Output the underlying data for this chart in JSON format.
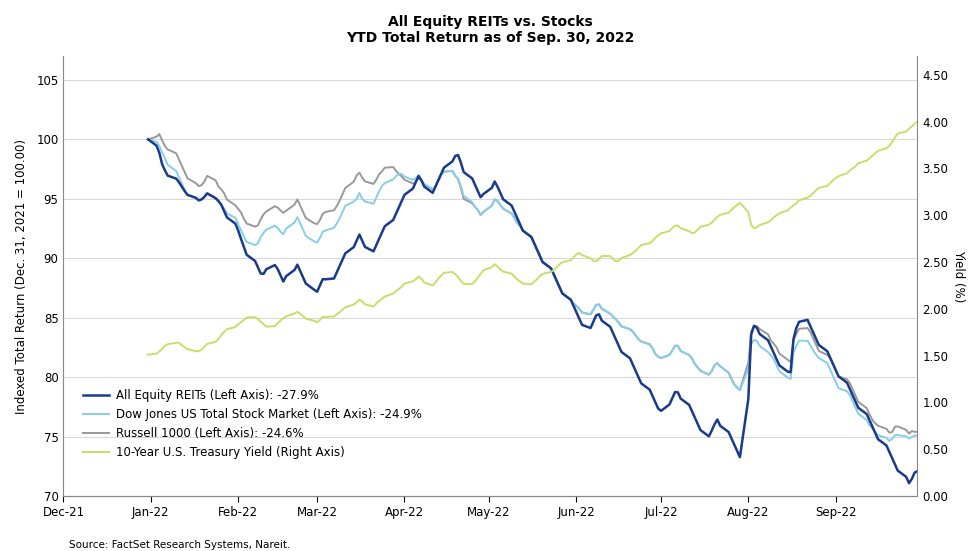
{
  "title_line1": "All Equity REITs vs. Stocks",
  "title_line2": "YTD Total Return as of Sep. 30, 2022",
  "ylabel_left": "Indexed Total Return (Dec. 31, 2021 = 100.00)",
  "ylabel_right": "Yield (%)",
  "source": "Source: FactSet Research Systems, Nareit.",
  "ylim_left": [
    70,
    107
  ],
  "ylim_right": [
    0.0,
    4.7
  ],
  "yticks_left": [
    70,
    75,
    80,
    85,
    90,
    95,
    100,
    105
  ],
  "yticks_right": [
    0.0,
    0.5,
    1.0,
    1.5,
    2.0,
    2.5,
    3.0,
    3.5,
    4.0,
    4.5
  ],
  "colors": {
    "reit": "#1a3a8c",
    "dow": "#87ceeb",
    "russell": "#999999",
    "treasury": "#c5e06a"
  },
  "legend": [
    "All Equity REITs (Left Axis): -27.9%",
    "Dow Jones US Total Stock Market (Left Axis): -24.9%",
    "Russell 1000 (Left Axis): -24.6%",
    "10-Year U.S. Treasury Yield (Right Axis)"
  ],
  "reit_data": [
    100.0,
    99.5,
    99.0,
    98.0,
    97.5,
    97.0,
    96.8,
    96.5,
    96.2,
    95.8,
    95.5,
    95.2,
    95.0,
    94.8,
    95.0,
    95.2,
    95.5,
    95.0,
    94.8,
    94.5,
    94.0,
    93.5,
    93.0,
    92.5,
    91.8,
    91.2,
    90.5,
    90.0,
    89.5,
    89.0,
    88.5,
    88.8,
    89.2,
    89.5,
    89.0,
    88.5,
    88.0,
    88.5,
    89.0,
    89.5,
    89.0,
    88.5,
    88.0,
    87.5,
    87.0,
    87.5,
    88.0,
    88.5,
    88.0,
    88.5,
    89.0,
    89.5,
    90.0,
    90.5,
    91.0,
    91.5,
    92.0,
    91.5,
    91.0,
    90.5,
    91.0,
    91.5,
    92.0,
    92.5,
    93.0,
    93.5,
    94.0,
    94.5,
    95.0,
    95.5,
    96.0,
    96.5,
    97.0,
    96.5,
    96.0,
    95.5,
    96.0,
    96.5,
    97.0,
    97.5,
    98.0,
    98.5,
    98.8,
    98.5,
    97.5,
    97.0,
    96.5,
    96.0,
    95.5,
    95.0,
    95.5,
    96.0,
    96.5,
    96.0,
    95.5,
    95.0,
    94.5,
    94.0,
    93.5,
    93.0,
    92.5,
    92.0,
    91.5,
    91.0,
    90.5,
    90.0,
    89.5,
    89.0,
    88.5,
    88.0,
    87.5,
    87.0,
    86.5,
    86.0,
    85.5,
    85.0,
    84.5,
    84.0,
    84.5,
    85.0,
    85.5,
    85.0,
    84.5,
    84.0,
    83.5,
    83.0,
    82.5,
    82.0,
    81.5,
    81.0,
    80.5,
    80.0,
    79.5,
    79.0,
    78.5,
    78.0,
    77.5,
    77.0,
    77.5,
    78.0,
    78.5,
    79.0,
    78.5,
    78.0,
    77.5,
    77.0,
    76.5,
    76.0,
    75.5,
    75.0,
    75.5,
    76.0,
    76.5,
    76.0,
    75.5,
    75.0,
    74.5,
    74.0,
    73.5,
    73.0,
    83.0,
    84.0,
    84.5,
    84.0,
    83.5,
    83.0,
    82.5,
    82.0,
    81.5,
    81.0,
    80.5,
    80.0,
    83.0,
    84.0,
    84.5,
    85.0,
    84.5,
    84.0,
    83.5,
    83.0,
    82.5,
    82.0,
    81.5,
    81.0,
    80.5,
    80.0,
    79.5,
    79.0,
    78.5,
    78.0,
    77.5,
    77.0,
    76.5,
    76.0,
    75.5,
    75.0,
    74.5,
    74.0,
    73.5,
    73.0,
    72.5,
    72.0,
    71.5,
    71.0,
    71.5,
    72.0,
    72.1
  ],
  "dow_data": [
    100.0,
    99.8,
    99.5,
    99.0,
    98.5,
    98.0,
    97.5,
    97.0,
    96.5,
    96.0,
    95.5,
    95.2,
    95.0,
    94.8,
    95.0,
    95.2,
    95.5,
    95.0,
    94.8,
    94.5,
    94.2,
    93.8,
    93.5,
    93.0,
    92.5,
    92.0,
    91.5,
    91.2,
    91.0,
    91.5,
    92.0,
    92.2,
    92.5,
    92.8,
    92.5,
    92.2,
    92.0,
    92.5,
    93.0,
    93.5,
    93.0,
    92.5,
    92.0,
    91.5,
    91.2,
    91.5,
    92.0,
    92.5,
    92.2,
    92.8,
    93.0,
    93.5,
    94.0,
    94.5,
    94.8,
    95.0,
    95.5,
    95.0,
    94.8,
    94.5,
    95.0,
    95.5,
    96.0,
    96.2,
    96.5,
    96.8,
    97.0,
    97.2,
    97.0,
    96.8,
    96.5,
    96.8,
    97.0,
    96.5,
    96.2,
    95.8,
    96.0,
    96.5,
    97.0,
    97.2,
    97.5,
    97.0,
    96.8,
    96.5,
    95.5,
    95.0,
    94.5,
    94.2,
    94.0,
    93.5,
    94.0,
    94.5,
    95.0,
    94.8,
    94.5,
    94.2,
    93.8,
    93.5,
    93.0,
    92.8,
    92.5,
    92.0,
    91.5,
    91.0,
    90.5,
    90.0,
    89.5,
    89.0,
    88.5,
    88.0,
    87.5,
    87.0,
    86.5,
    86.2,
    86.0,
    85.8,
    85.5,
    85.2,
    85.5,
    86.0,
    86.2,
    86.0,
    85.5,
    85.2,
    85.0,
    84.8,
    84.5,
    84.2,
    84.0,
    83.8,
    83.5,
    83.2,
    83.0,
    82.8,
    82.5,
    82.0,
    81.8,
    81.5,
    81.8,
    82.0,
    82.5,
    82.8,
    82.5,
    82.0,
    81.8,
    81.5,
    81.0,
    80.8,
    80.5,
    80.2,
    80.5,
    81.0,
    81.2,
    81.0,
    80.5,
    80.0,
    79.5,
    79.2,
    79.0,
    78.8,
    82.5,
    83.0,
    83.2,
    83.0,
    82.5,
    82.0,
    81.8,
    81.5,
    81.0,
    80.5,
    80.0,
    79.5,
    82.0,
    82.5,
    83.0,
    83.2,
    82.8,
    82.5,
    82.0,
    81.8,
    81.5,
    81.0,
    80.5,
    80.0,
    79.5,
    79.0,
    78.8,
    78.5,
    78.0,
    77.5,
    77.0,
    76.5,
    76.0,
    75.8,
    75.5,
    75.2,
    75.0,
    74.8,
    74.5,
    75.0,
    75.2,
    75.1,
    75.0,
    74.8,
    75.0,
    75.1,
    75.1
  ],
  "russell_data": [
    100.0,
    100.2,
    100.5,
    100.0,
    99.5,
    99.2,
    99.0,
    98.5,
    98.0,
    97.5,
    97.0,
    96.5,
    96.2,
    96.0,
    96.2,
    96.5,
    97.0,
    96.5,
    96.0,
    95.8,
    95.5,
    95.0,
    94.5,
    94.2,
    94.0,
    93.5,
    93.0,
    92.8,
    92.5,
    93.0,
    93.5,
    93.8,
    94.0,
    94.5,
    94.2,
    94.0,
    93.8,
    94.0,
    94.5,
    95.0,
    94.5,
    94.0,
    93.5,
    93.0,
    92.8,
    93.0,
    93.5,
    94.0,
    93.8,
    94.2,
    94.5,
    95.0,
    95.5,
    96.0,
    96.5,
    97.0,
    97.2,
    96.8,
    96.5,
    96.2,
    96.5,
    97.0,
    97.2,
    97.5,
    97.8,
    97.5,
    97.2,
    97.0,
    96.8,
    96.5,
    96.2,
    96.5,
    96.8,
    96.5,
    96.2,
    95.8,
    96.0,
    96.5,
    97.0,
    97.2,
    97.5,
    97.0,
    96.8,
    96.5,
    95.2,
    94.8,
    94.5,
    94.2,
    94.0,
    93.5,
    94.0,
    94.5,
    95.0,
    94.8,
    94.5,
    94.2,
    93.8,
    93.5,
    93.0,
    92.8,
    92.5,
    92.0,
    91.5,
    91.0,
    90.5,
    90.0,
    89.5,
    89.0,
    88.5,
    88.0,
    87.5,
    87.0,
    86.5,
    86.2,
    86.0,
    85.8,
    85.5,
    85.2,
    85.5,
    86.0,
    86.2,
    86.0,
    85.5,
    85.2,
    85.0,
    84.8,
    84.5,
    84.2,
    84.0,
    83.8,
    83.5,
    83.2,
    83.0,
    82.8,
    82.5,
    82.0,
    81.8,
    81.5,
    81.8,
    82.0,
    82.5,
    82.8,
    82.5,
    82.0,
    81.8,
    81.5,
    81.0,
    80.8,
    80.5,
    80.2,
    80.5,
    81.0,
    81.2,
    81.0,
    80.5,
    80.0,
    79.5,
    79.2,
    79.0,
    78.8,
    83.5,
    84.0,
    84.5,
    84.2,
    84.0,
    83.5,
    83.0,
    82.8,
    82.5,
    82.0,
    81.5,
    81.0,
    83.0,
    83.5,
    84.0,
    84.2,
    84.0,
    83.5,
    83.0,
    82.5,
    82.0,
    81.8,
    81.5,
    81.0,
    80.5,
    80.0,
    79.8,
    79.5,
    79.0,
    78.5,
    78.0,
    77.5,
    77.0,
    76.5,
    76.2,
    76.0,
    75.8,
    75.5,
    75.2,
    75.5,
    76.0,
    75.8,
    75.5,
    75.2,
    75.5,
    75.4,
    75.4
  ],
  "treasury_data": [
    1.51,
    1.52,
    1.54,
    1.57,
    1.6,
    1.62,
    1.63,
    1.65,
    1.62,
    1.6,
    1.58,
    1.56,
    1.54,
    1.55,
    1.57,
    1.6,
    1.63,
    1.65,
    1.68,
    1.72,
    1.75,
    1.78,
    1.8,
    1.83,
    1.85,
    1.87,
    1.9,
    1.92,
    1.9,
    1.88,
    1.85,
    1.83,
    1.8,
    1.82,
    1.85,
    1.88,
    1.9,
    1.92,
    1.95,
    1.97,
    1.95,
    1.93,
    1.9,
    1.88,
    1.85,
    1.87,
    1.9,
    1.93,
    1.9,
    1.93,
    1.95,
    1.97,
    2.0,
    2.02,
    2.05,
    2.07,
    2.1,
    2.08,
    2.05,
    2.02,
    2.05,
    2.08,
    2.1,
    2.12,
    2.15,
    2.18,
    2.2,
    2.22,
    2.25,
    2.28,
    2.3,
    2.32,
    2.35,
    2.32,
    2.28,
    2.25,
    2.28,
    2.32,
    2.35,
    2.38,
    2.4,
    2.38,
    2.35,
    2.32,
    2.28,
    2.25,
    2.28,
    2.3,
    2.35,
    2.38,
    2.42,
    2.45,
    2.48,
    2.45,
    2.42,
    2.4,
    2.38,
    2.35,
    2.32,
    2.3,
    2.28,
    2.25,
    2.28,
    2.3,
    2.33,
    2.36,
    2.38,
    2.4,
    2.42,
    2.45,
    2.48,
    2.5,
    2.52,
    2.55,
    2.58,
    2.6,
    2.58,
    2.55,
    2.52,
    2.5,
    2.52,
    2.55,
    2.58,
    2.55,
    2.52,
    2.5,
    2.52,
    2.55,
    2.58,
    2.6,
    2.62,
    2.65,
    2.68,
    2.7,
    2.72,
    2.75,
    2.78,
    2.8,
    2.82,
    2.85,
    2.88,
    2.9,
    2.88,
    2.85,
    2.82,
    2.8,
    2.82,
    2.85,
    2.88,
    2.9,
    2.92,
    2.95,
    2.98,
    3.0,
    3.02,
    3.05,
    3.08,
    3.1,
    3.12,
    3.15,
    2.92,
    2.88,
    2.85,
    2.88,
    2.9,
    2.93,
    2.95,
    2.98,
    3.0,
    3.02,
    3.05,
    3.08,
    3.1,
    3.12,
    3.15,
    3.18,
    3.2,
    3.22,
    3.25,
    3.28,
    3.3,
    3.32,
    3.35,
    3.38,
    3.4,
    3.42,
    3.45,
    3.48,
    3.5,
    3.52,
    3.55,
    3.58,
    3.6,
    3.63,
    3.65,
    3.68,
    3.7,
    3.73,
    3.75,
    3.8,
    3.85,
    3.88,
    3.9,
    3.93,
    3.95,
    3.98,
    4.0
  ]
}
